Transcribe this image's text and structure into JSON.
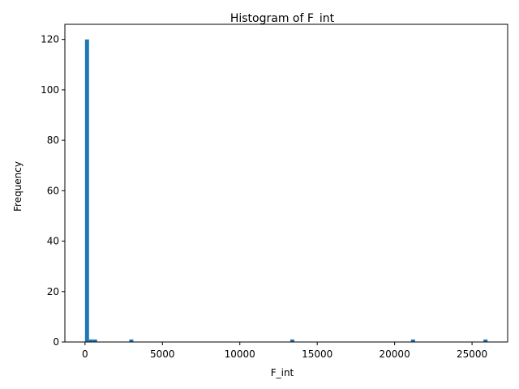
{
  "chart_data": {
    "type": "bar",
    "title": "Histogram of F_int",
    "xlabel": "F_int",
    "ylabel": "Frequency",
    "xlim": [
      -1300,
      27300
    ],
    "ylim": [
      0,
      126
    ],
    "xticks": [
      0,
      5000,
      10000,
      15000,
      20000,
      25000
    ],
    "yticks": [
      0,
      20,
      40,
      60,
      80,
      100,
      120
    ],
    "bin_width": 260,
    "bins": [
      {
        "x0": 0,
        "x1": 260,
        "count": 120
      },
      {
        "x0": 260,
        "x1": 520,
        "count": 1
      },
      {
        "x0": 520,
        "x1": 780,
        "count": 1
      },
      {
        "x0": 2860,
        "x1": 3120,
        "count": 1
      },
      {
        "x0": 13260,
        "x1": 13520,
        "count": 1
      },
      {
        "x0": 21060,
        "x1": 21320,
        "count": 1
      },
      {
        "x0": 25740,
        "x1": 26000,
        "count": 1
      }
    ],
    "bar_color": "#1f77b4",
    "grid": false,
    "legend": "none"
  }
}
